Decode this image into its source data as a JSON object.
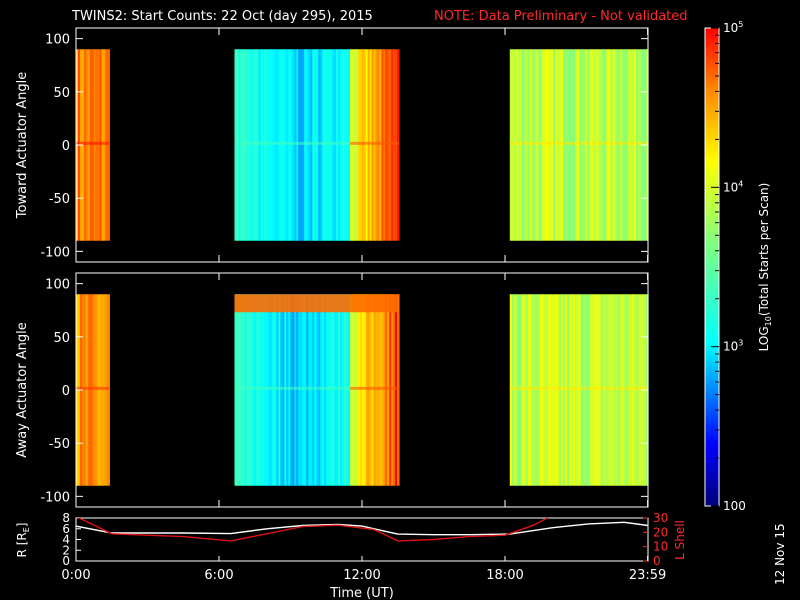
{
  "title": {
    "main": "TWINS2: Start Counts: 22 Oct (day 295), 2015",
    "note": "NOTE: Data Preliminary - Not validated"
  },
  "date_stamp": "12 Nov 15",
  "colors": {
    "background": "#000000",
    "note_text": "#ff2a2a",
    "r_line": "#ffffff",
    "lshell_line": "#dd1111"
  },
  "chart_data": [
    {
      "type": "heatmap",
      "ylabel": "Toward Actuator Angle",
      "xlim": [
        0,
        24
      ],
      "ylim": [
        -110,
        110
      ],
      "yticks": [
        -100,
        -50,
        0,
        50,
        100
      ],
      "data_range_y": [
        -90,
        90
      ],
      "gaps_hours": [
        [
          1.4,
          6.65
        ],
        [
          13.55,
          18.2
        ]
      ],
      "description_levels": "log10 counts per column block",
      "blocks": [
        {
          "t0": 0.0,
          "t1": 1.4,
          "level": 4.6
        },
        {
          "t0": 6.65,
          "t1": 11.5,
          "level": 3.0
        },
        {
          "t0": 11.5,
          "t1": 13.55,
          "level": 4.4
        },
        {
          "t0": 18.2,
          "t1": 24.0,
          "level": 3.9
        }
      ]
    },
    {
      "type": "heatmap",
      "ylabel": "Away Actuator Angle",
      "xlim": [
        0,
        24
      ],
      "ylim": [
        -110,
        110
      ],
      "yticks": [
        -100,
        -50,
        0,
        50,
        100
      ],
      "data_range_y": [
        -90,
        90
      ],
      "gaps_hours": [
        [
          1.4,
          6.65
        ],
        [
          13.55,
          18.2
        ]
      ],
      "blocks": [
        {
          "t0": 0.0,
          "t1": 1.4,
          "level": 4.5
        },
        {
          "t0": 6.65,
          "t1": 11.5,
          "level": 3.0
        },
        {
          "t0": 11.5,
          "t1": 13.55,
          "level": 4.4
        },
        {
          "t0": 18.2,
          "t1": 24.0,
          "level": 3.9
        }
      ]
    },
    {
      "type": "line",
      "xlabel": "Time (UT)",
      "xticks": [
        0,
        6,
        12,
        18,
        23.983
      ],
      "xticklabels": [
        "0:00",
        "6:00",
        "12:00",
        "18:00",
        "23:59"
      ],
      "ylabel_left": "R [R",
      "ylabel_left_sub": "E",
      "ylabel_left_end": "]",
      "ylim_left": [
        0,
        8
      ],
      "yticks_left": [
        0,
        2,
        4,
        6,
        8
      ],
      "ylabel_right": "L Shell",
      "ylim_right": [
        0,
        30
      ],
      "yticks_right": [
        0,
        10,
        20,
        30
      ],
      "series": [
        {
          "axis": "left",
          "color": "#ffffff",
          "x": [
            0,
            1.5,
            3,
            4.5,
            6.5,
            8,
            9.5,
            11,
            12,
            13.5,
            15,
            16.5,
            18.2,
            20,
            21.5,
            23,
            24
          ],
          "y": [
            6.5,
            5.2,
            5.2,
            5.2,
            5.1,
            6.0,
            6.6,
            6.8,
            6.5,
            5.0,
            4.9,
            4.9,
            5.0,
            6.2,
            6.9,
            7.2,
            6.6
          ]
        },
        {
          "axis": "right",
          "color": "#dd1111",
          "x": [
            0,
            0.5,
            1.5,
            3,
            4.5,
            6.5,
            8,
            9.5,
            11,
            12.5,
            13.5,
            15,
            16.5,
            18,
            19.2,
            20
          ],
          "y": [
            31,
            27,
            19,
            18,
            17,
            14,
            19,
            24,
            25,
            22,
            14,
            15,
            17,
            18,
            25,
            32
          ]
        }
      ]
    }
  ],
  "colorbar": {
    "label_prefix": "LOG",
    "label_sub": "10",
    "label_suffix": "(Total Starts per Scan)",
    "min": 100,
    "max": 100000,
    "ticks": [
      {
        "base": "10",
        "exp": "5",
        "value": 100000
      },
      {
        "base": "10",
        "exp": "4",
        "value": 10000
      },
      {
        "base": "10",
        "exp": "3",
        "value": 1000
      },
      {
        "text": "100",
        "value": 100
      }
    ]
  }
}
